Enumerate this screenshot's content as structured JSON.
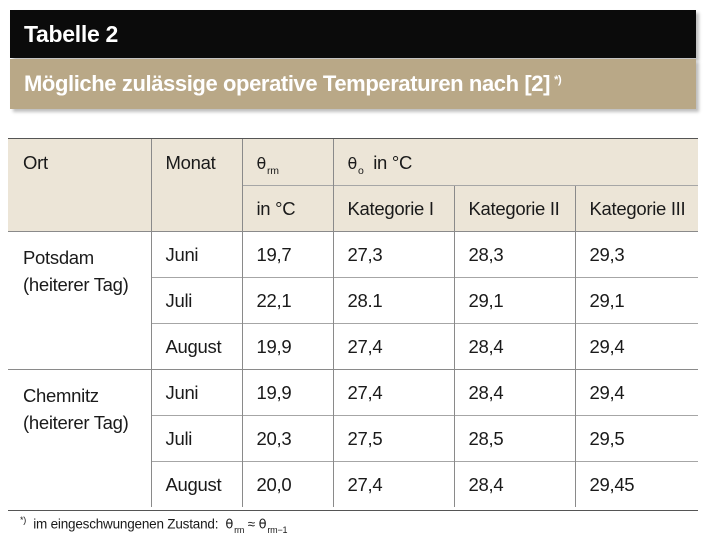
{
  "title": "Tabelle 2",
  "subtitle": "Mögliche zulässige operative Temperaturen nach [2]",
  "subtitle_mark": "*)",
  "header": {
    "ort": "Ort",
    "monat": "Monat",
    "theta_symbol": "θ",
    "theta_rm_sub": "rm",
    "theta_o_sub": "o",
    "theta_o_unit": "in °C",
    "rm_unit": "in °C",
    "kategorien": [
      "Kategorie I",
      "Kategorie II",
      "Kategorie III"
    ]
  },
  "groups": [
    {
      "ort_line1": "Potsdam",
      "ort_line2": "(heiterer Tag)",
      "rows": [
        {
          "monat": "Juni",
          "theta_rm": "19,7",
          "k1": "27,3",
          "k2": "28,3",
          "k3": "29,3"
        },
        {
          "monat": "Juli",
          "theta_rm": "22,1",
          "k1": "28.1",
          "k2": "29,1",
          "k3": "29,1"
        },
        {
          "monat": "August",
          "theta_rm": "19,9",
          "k1": "27,4",
          "k2": "28,4",
          "k3": "29,4"
        }
      ]
    },
    {
      "ort_line1": "Chemnitz",
      "ort_line2": "(heiterer Tag)",
      "rows": [
        {
          "monat": "Juni",
          "theta_rm": "19,9",
          "k1": "27,4",
          "k2": "28,4",
          "k3": "29,4"
        },
        {
          "monat": "Juli",
          "theta_rm": "20,3",
          "k1": "27,5",
          "k2": "28,5",
          "k3": "29,5"
        },
        {
          "monat": "August",
          "theta_rm": "20,0",
          "k1": "27,4",
          "k2": "28,4",
          "k3": "29,45"
        }
      ]
    }
  ],
  "footnote": {
    "mark": "*)",
    "text": "im eingeschwungenen Zustand:",
    "approx": "≈",
    "sub_left": "rm",
    "sub_right": "rm−1"
  },
  "colors": {
    "title_bg": "#0b0b0b",
    "subtitle_bg": "#b9a887",
    "header_bg": "#ece5d7"
  }
}
